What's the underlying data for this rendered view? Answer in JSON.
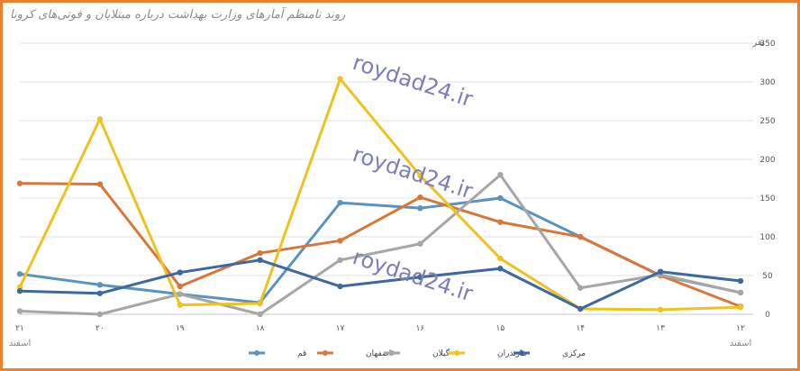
{
  "chart_data": {
    "type": "line",
    "title": "روند نامنظم آمارهای وزارت بهداشت درباره مبتلایان و فوتی‌های کرونا",
    "ylabel": "نفر",
    "ylim": [
      0,
      350
    ],
    "yticks": [
      0,
      50,
      100,
      150,
      200,
      250,
      300,
      350
    ],
    "categories": [
      "۱۲",
      "۱۳",
      "۱۴",
      "۱۵",
      "۱۶",
      "۱۷",
      "۱۸",
      "۱۹",
      "۲۰",
      "۲۱"
    ],
    "sublabels": [
      "اسفند",
      "",
      "",
      "",
      "",
      "",
      "",
      "",
      "",
      "اسفند"
    ],
    "series": [
      {
        "name": "قم",
        "color": "#5b93bf",
        "values": [
          28,
          50,
          100,
          150,
          137,
          144,
          15,
          26,
          38,
          52
        ]
      },
      {
        "name": "اصفهان",
        "color": "#d9773a",
        "values": [
          10,
          50,
          100,
          119,
          151,
          95,
          79,
          36,
          168,
          169
        ]
      },
      {
        "name": "گیلان",
        "color": "#a6a6a6",
        "values": [
          28,
          51,
          34,
          180,
          91,
          70,
          0,
          26,
          0,
          4
        ]
      },
      {
        "name": "مازندران",
        "color": "#eec21f",
        "values": [
          9,
          6,
          7,
          72,
          179,
          304,
          14,
          12,
          252,
          35
        ]
      },
      {
        "name": "مرکزی",
        "color": "#3e68a0",
        "values": [
          43,
          55,
          7,
          59,
          48,
          36,
          70,
          54,
          27,
          30
        ]
      }
    ],
    "grid": true,
    "legend": "bottom"
  },
  "watermarks": [
    "roydad24.ir",
    "roydad24.ir",
    "roydad24.ir"
  ]
}
